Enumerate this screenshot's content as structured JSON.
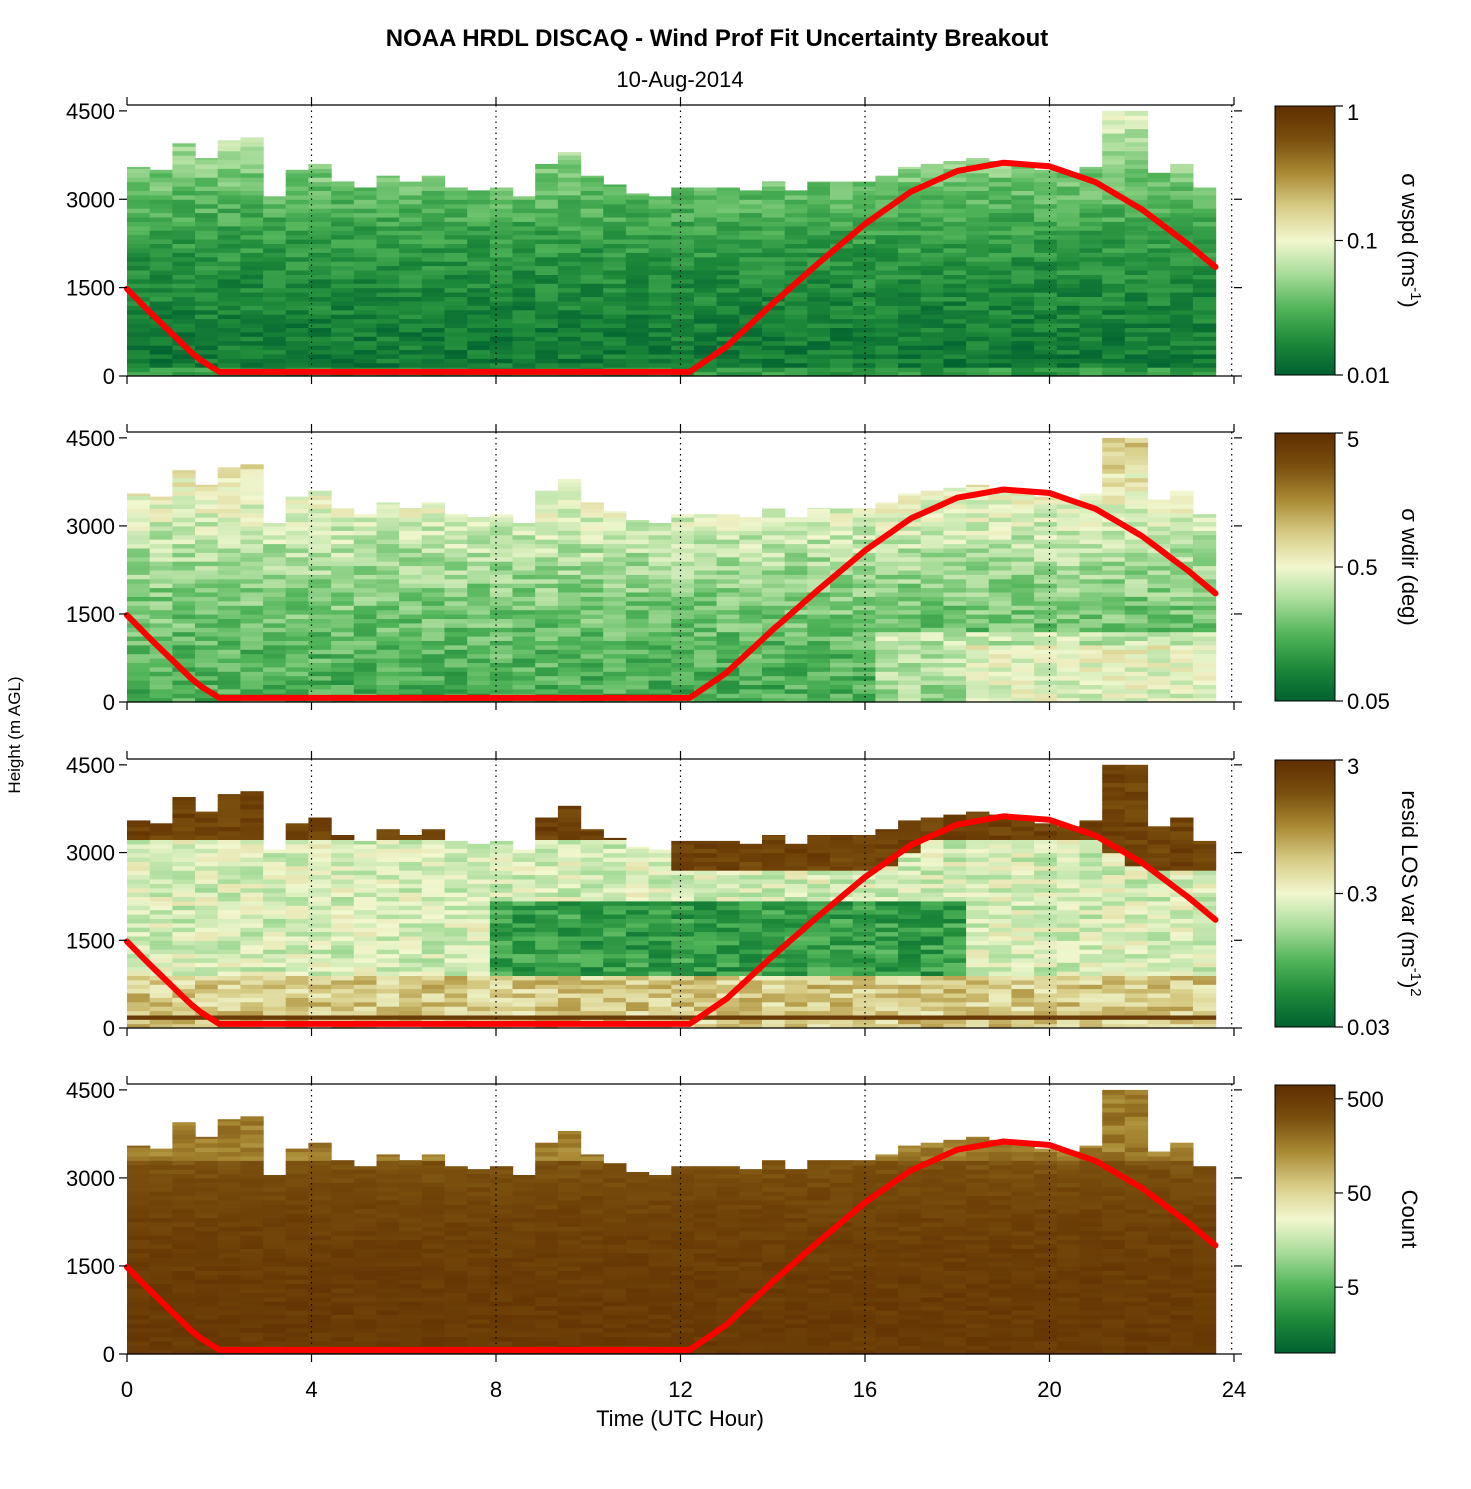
{
  "title": "NOAA HRDL DISCAQ - Wind Prof Fit Uncertainty Breakout",
  "subtitle": "10-Aug-2014",
  "xlabel": "Time (UTC Hour)",
  "ylabel": "Height (m AGL)",
  "colors": {
    "colormap": [
      "#006030",
      "#1e8a3a",
      "#52b55a",
      "#a8dc9a",
      "#f2f7cf",
      "#d7cc86",
      "#a98a34",
      "#7a4f0e",
      "#5f2e00"
    ],
    "curve": "#ff0000"
  },
  "chart_data": [
    {
      "type": "heatmap",
      "name": "panel-wspd",
      "cbar_label": "σ wspd (ms",
      "cbar_label_sup": "-1",
      "cbar_label_end": ")",
      "cbar_ticks": [
        "1",
        "0.1",
        "0.01"
      ],
      "cbar_range": [
        0.01,
        1
      ],
      "cbar_scale": "log",
      "xlim": [
        0,
        24
      ],
      "ylim": [
        0,
        4600
      ],
      "x_ticks": [
        "0",
        "4",
        "8",
        "12",
        "16",
        "20",
        "24"
      ],
      "y_ticks": [
        "0",
        "1500",
        "3000",
        "4500"
      ],
      "grid": "vertical dotted at 4, 8, 12, 16, 20"
    },
    {
      "type": "heatmap",
      "name": "panel-wdir",
      "cbar_label": "σ wdir (deg)",
      "cbar_ticks": [
        "5",
        "0.5",
        "0.05"
      ],
      "cbar_range": [
        0.05,
        5
      ],
      "cbar_scale": "log",
      "xlim": [
        0,
        24
      ],
      "ylim": [
        0,
        4600
      ],
      "x_ticks": [
        "0",
        "4",
        "8",
        "12",
        "16",
        "20",
        "24"
      ],
      "y_ticks": [
        "0",
        "1500",
        "3000",
        "4500"
      ],
      "grid": "vertical dotted at 4, 8, 12, 16, 20"
    },
    {
      "type": "heatmap",
      "name": "panel-resid",
      "cbar_label": "resid LOS var (ms",
      "cbar_label_sup": "-1",
      "cbar_label_end": ")",
      "cbar_label_sup2": "2",
      "cbar_ticks": [
        "3",
        "0.3",
        "0.03"
      ],
      "cbar_range": [
        0.03,
        3
      ],
      "cbar_scale": "log",
      "xlim": [
        0,
        24
      ],
      "ylim": [
        0,
        4600
      ],
      "x_ticks": [
        "0",
        "4",
        "8",
        "12",
        "16",
        "20",
        "24"
      ],
      "y_ticks": [
        "0",
        "1500",
        "3000",
        "4500"
      ],
      "grid": "vertical dotted at 4, 8, 12, 16, 20"
    },
    {
      "type": "heatmap",
      "name": "panel-count",
      "cbar_label": "Count",
      "cbar_ticks": [
        "500",
        "50",
        "5"
      ],
      "cbar_range": [
        1,
        700
      ],
      "cbar_scale": "log",
      "xlim": [
        0,
        24
      ],
      "ylim": [
        0,
        4600
      ],
      "x_ticks": [
        "0",
        "4",
        "8",
        "12",
        "16",
        "20",
        "24"
      ],
      "y_ticks": [
        "0",
        "1500",
        "3000",
        "4500"
      ],
      "grid": "vertical dotted at 4, 8, 12, 16, 20"
    }
  ],
  "series": {
    "time_hours": [
      0,
      0.5,
      1,
      1.5,
      2,
      3,
      4,
      5,
      6,
      7,
      8,
      9,
      10,
      11,
      12,
      12.2,
      13,
      14,
      15,
      16,
      17,
      18,
      19,
      20,
      21,
      22,
      23,
      23.6
    ],
    "boundary_layer_height_m": [
      1480,
      1080,
      700,
      320,
      70,
      70,
      70,
      70,
      70,
      70,
      70,
      70,
      70,
      70,
      70,
      70,
      500,
      1230,
      1920,
      2580,
      3130,
      3480,
      3620,
      3560,
      3290,
      2830,
      2240,
      1850
    ]
  },
  "profile_top_m": [
    3550,
    3500,
    3950,
    3700,
    4000,
    4050,
    3050,
    3500,
    3600,
    3300,
    3200,
    3400,
    3300,
    3400,
    3200,
    3150,
    3200,
    3050,
    3600,
    3800,
    3400,
    3250,
    3100,
    3050,
    3200,
    3200,
    3200,
    3150,
    3300,
    3150,
    3300,
    3300,
    3300,
    3400,
    3550,
    3600,
    3650,
    3700,
    3650,
    3600,
    3500,
    3450,
    3550,
    4500,
    4500,
    3450,
    3600,
    3200
  ]
}
